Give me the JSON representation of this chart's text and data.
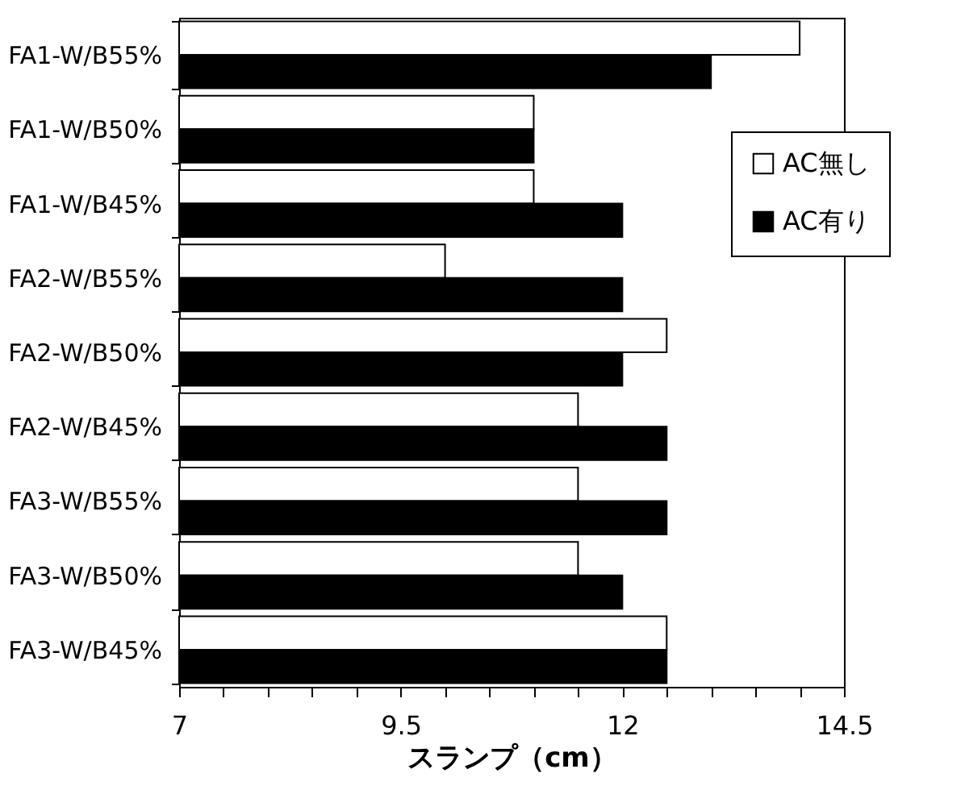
{
  "chart_data": {
    "type": "bar",
    "orientation": "horizontal",
    "xlabel": "スランプ（cm）",
    "categories": [
      "FA1-W/B55%",
      "FA1-W/B50%",
      "FA1-W/B45%",
      "FA2-W/B55%",
      "FA2-W/B50%",
      "FA2-W/B45%",
      "FA3-W/B55%",
      "FA3-W/B50%",
      "FA3-W/B45%"
    ],
    "series": [
      {
        "name": "AC無し",
        "color": "#ffffff",
        "values": [
          14,
          11,
          11,
          10,
          12.5,
          11.5,
          11.5,
          11.5,
          12.5
        ]
      },
      {
        "name": "AC有り",
        "color": "#000000",
        "values": [
          13,
          11,
          12,
          12,
          12,
          12.5,
          12.5,
          12,
          12.5
        ]
      }
    ],
    "xlim": [
      7,
      14.5
    ],
    "xticks": [
      7,
      {
        "value": 7.5,
        "label": null
      },
      {
        "value": 8,
        "label": null
      },
      {
        "value": 8.5,
        "label": null
      },
      {
        "value": 9,
        "label": null
      },
      9.5,
      {
        "value": 10,
        "label": null
      },
      {
        "value": 10.5,
        "label": null
      },
      {
        "value": 11,
        "label": null
      },
      {
        "value": 11.5,
        "label": null
      },
      12,
      {
        "value": 12.5,
        "label": null
      },
      {
        "value": 13,
        "label": null
      },
      {
        "value": 13.5,
        "label": null
      },
      {
        "value": 14,
        "label": null
      },
      14.5
    ],
    "grid": false,
    "legend": "right"
  }
}
